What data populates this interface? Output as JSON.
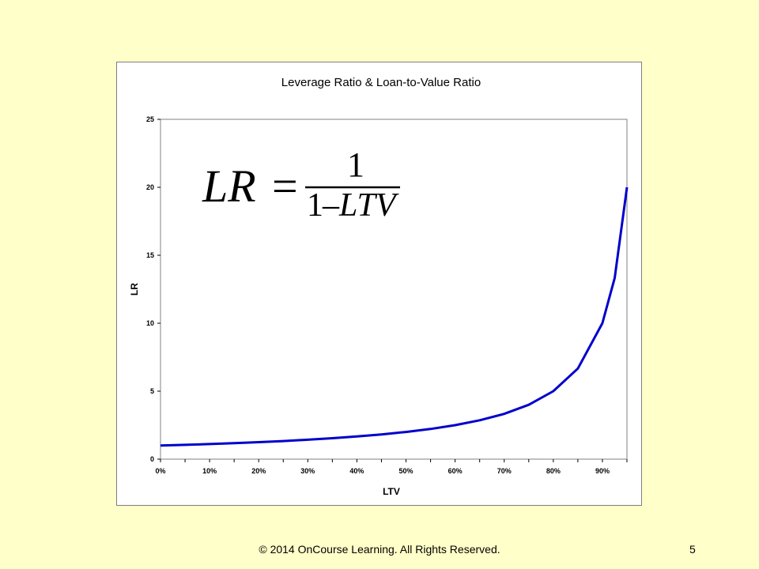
{
  "footer": {
    "copyright": "© 2014 OnCourse Learning. All Rights Reserved.",
    "page_number": "5"
  },
  "formula": {
    "lhs": "LR",
    "equals": "=",
    "numerator": "1",
    "denominator_one": "1",
    "denominator_minus": "–",
    "denominator_var": "LTV"
  },
  "colors": {
    "background": "#FFFFC9",
    "plot_area": "#FFFFFF",
    "line": "#0000CC"
  },
  "chart_data": {
    "type": "line",
    "title": "Leverage Ratio & Loan-to-Value Ratio",
    "xlabel": "LTV",
    "ylabel": "LR",
    "xlim": [
      0,
      0.95
    ],
    "ylim": [
      0,
      25
    ],
    "x_ticks": [
      0,
      0.1,
      0.2,
      0.3,
      0.4,
      0.5,
      0.6,
      0.7,
      0.8,
      0.9
    ],
    "x_tick_labels": [
      "0%",
      "10%",
      "20%",
      "30%",
      "40%",
      "50%",
      "60%",
      "70%",
      "80%",
      "90%"
    ],
    "y_ticks": [
      0,
      5,
      10,
      15,
      20,
      25
    ],
    "y_tick_labels": [
      "0",
      "5",
      "10",
      "15",
      "20",
      "25"
    ],
    "grid": false,
    "legend": "none",
    "series": [
      {
        "x": [
          0,
          0.05,
          0.1,
          0.15,
          0.2,
          0.25,
          0.3,
          0.35,
          0.4,
          0.45,
          0.5,
          0.55,
          0.6,
          0.65,
          0.7,
          0.75,
          0.8,
          0.85,
          0.9,
          0.925,
          0.95
        ],
        "y": [
          1.0,
          1.05,
          1.11,
          1.18,
          1.25,
          1.33,
          1.43,
          1.54,
          1.67,
          1.82,
          2.0,
          2.22,
          2.5,
          2.86,
          3.33,
          4.0,
          5.0,
          6.67,
          10.0,
          13.33,
          20.0
        ]
      }
    ]
  }
}
